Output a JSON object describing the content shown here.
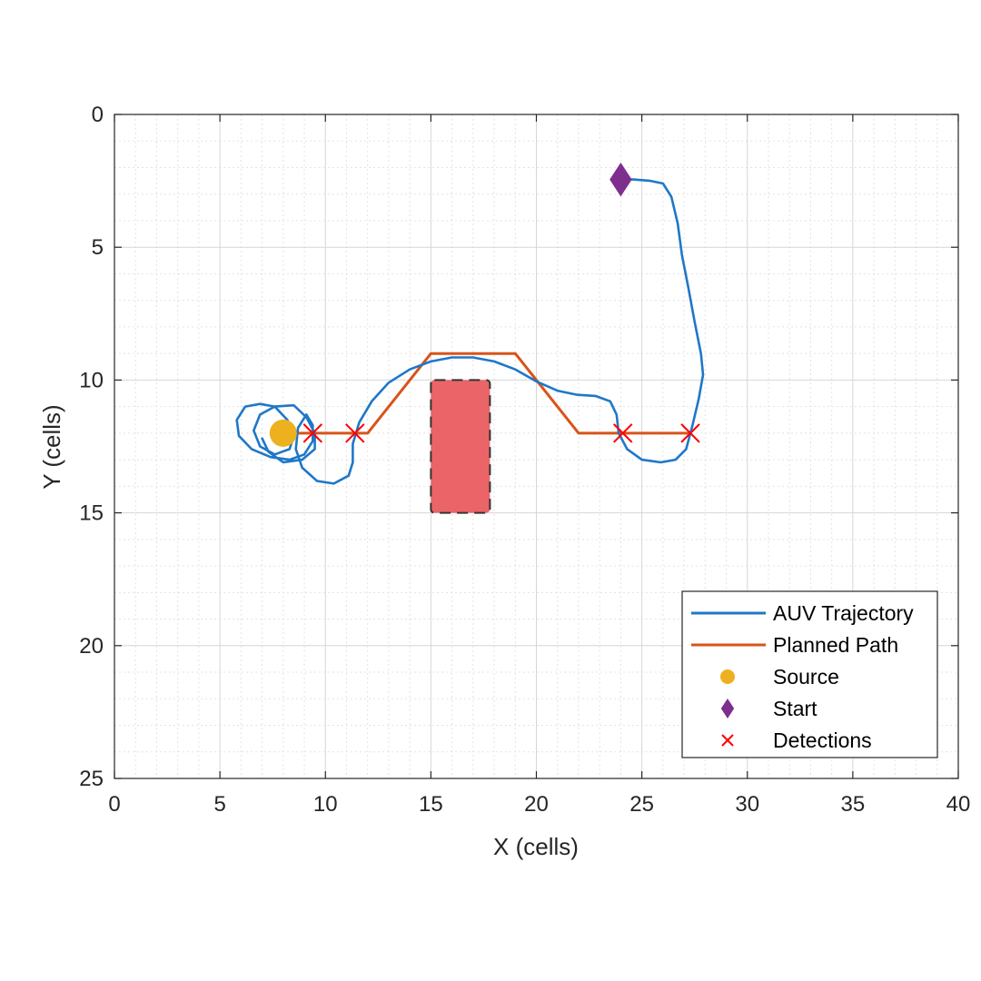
{
  "chart_data": {
    "type": "line",
    "title": "",
    "xlabel": "X (cells)",
    "ylabel": "Y (cells)",
    "xlim": [
      0,
      40
    ],
    "ylim": [
      0,
      25
    ],
    "y_reversed": true,
    "xticks": [
      0,
      5,
      10,
      15,
      20,
      25,
      30,
      35,
      40
    ],
    "yticks": [
      0,
      5,
      10,
      15,
      20,
      25
    ],
    "grid": true,
    "minor_grid": true,
    "legend_position": "bottom-right",
    "obstacle": {
      "x": [
        15,
        17.8
      ],
      "y": [
        10,
        15
      ],
      "color": "#eb6467",
      "edge_style": "dashed"
    },
    "series": [
      {
        "name": "AUV Trajectory",
        "kind": "line",
        "color": "#1f77c8",
        "points": [
          [
            24.1,
            2.45
          ],
          [
            24.6,
            2.45
          ],
          [
            25.4,
            2.5
          ],
          [
            26.0,
            2.6
          ],
          [
            26.4,
            3.1
          ],
          [
            26.7,
            4.1
          ],
          [
            26.9,
            5.3
          ],
          [
            27.2,
            6.5
          ],
          [
            27.5,
            7.8
          ],
          [
            27.8,
            9.0
          ],
          [
            27.9,
            9.8
          ],
          [
            27.7,
            10.7
          ],
          [
            27.4,
            11.7
          ],
          [
            27.1,
            12.6
          ],
          [
            26.6,
            13.0
          ],
          [
            25.9,
            13.1
          ],
          [
            25.0,
            13.0
          ],
          [
            24.3,
            12.6
          ],
          [
            23.9,
            12.0
          ],
          [
            23.8,
            11.3
          ],
          [
            23.5,
            10.8
          ],
          [
            22.8,
            10.6
          ],
          [
            21.9,
            10.55
          ],
          [
            21.0,
            10.4
          ],
          [
            20.0,
            10.05
          ],
          [
            19.0,
            9.6
          ],
          [
            18.0,
            9.3
          ],
          [
            17.0,
            9.15
          ],
          [
            16.0,
            9.15
          ],
          [
            15.0,
            9.3
          ],
          [
            14.0,
            9.6
          ],
          [
            13.0,
            10.1
          ],
          [
            12.2,
            10.8
          ],
          [
            11.6,
            11.6
          ],
          [
            11.3,
            12.4
          ],
          [
            11.3,
            13.1
          ],
          [
            11.1,
            13.6
          ],
          [
            10.4,
            13.9
          ],
          [
            9.6,
            13.8
          ],
          [
            8.9,
            13.3
          ],
          [
            8.6,
            12.6
          ],
          [
            8.7,
            11.8
          ],
          [
            9.1,
            11.3
          ],
          [
            9.4,
            11.7
          ],
          [
            9.4,
            12.3
          ],
          [
            9.0,
            12.8
          ],
          [
            8.3,
            13.0
          ],
          [
            7.4,
            12.9
          ],
          [
            6.5,
            12.6
          ],
          [
            5.9,
            12.1
          ],
          [
            5.8,
            11.5
          ],
          [
            6.2,
            11.0
          ],
          [
            6.9,
            10.9
          ],
          [
            7.6,
            11.0
          ],
          [
            8.2,
            11.5
          ],
          [
            8.5,
            12.1
          ],
          [
            8.3,
            12.6
          ],
          [
            7.6,
            12.8
          ],
          [
            6.9,
            12.5
          ],
          [
            6.6,
            11.9
          ],
          [
            6.9,
            11.3
          ],
          [
            7.6,
            11.0
          ],
          [
            8.5,
            10.95
          ],
          [
            9.1,
            11.4
          ],
          [
            9.5,
            12.0
          ],
          [
            9.5,
            12.6
          ],
          [
            8.9,
            13.0
          ],
          [
            8.0,
            13.1
          ],
          [
            7.3,
            12.7
          ],
          [
            7.0,
            12.2
          ]
        ]
      },
      {
        "name": "Planned Path",
        "kind": "line",
        "color": "#d95319",
        "points": [
          [
            8.5,
            12
          ],
          [
            12,
            12
          ],
          [
            15,
            9
          ],
          [
            19,
            9
          ],
          [
            22,
            12
          ],
          [
            27.3,
            12
          ]
        ]
      },
      {
        "name": "Source",
        "kind": "marker",
        "marker": "circle",
        "color": "#edb120",
        "points": [
          [
            8,
            12
          ]
        ]
      },
      {
        "name": "Start",
        "kind": "marker",
        "marker": "diamond",
        "color": "#7e2f8e",
        "points": [
          [
            24,
            2.45
          ]
        ]
      },
      {
        "name": "Detections",
        "kind": "marker",
        "marker": "x",
        "color": "#ff0000",
        "points": [
          [
            9.4,
            12
          ],
          [
            11.4,
            12
          ],
          [
            24.1,
            12
          ],
          [
            27.3,
            12
          ]
        ]
      }
    ]
  }
}
